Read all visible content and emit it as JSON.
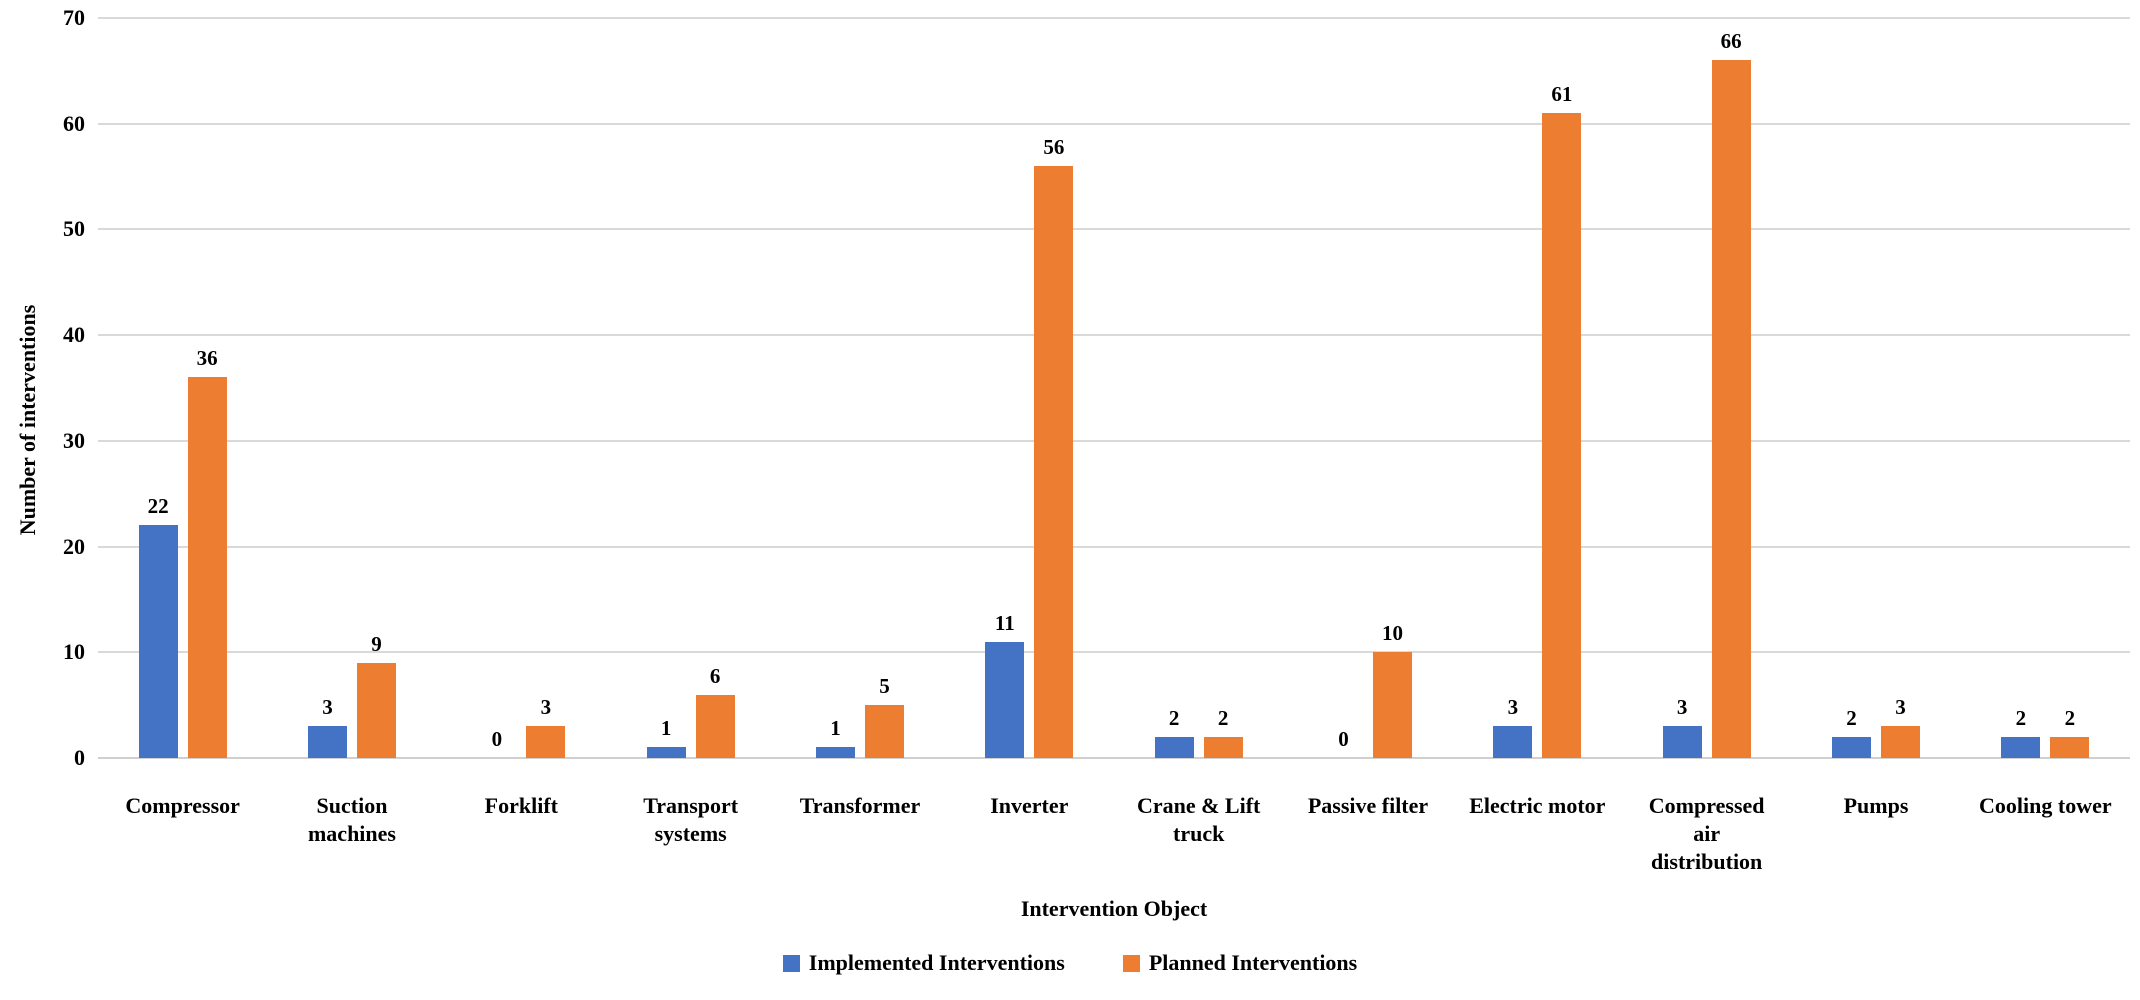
{
  "chart_data": {
    "type": "bar",
    "title": "",
    "xlabel": "Intervention Object",
    "ylabel": "Number of interventions",
    "ylim": [
      0,
      70
    ],
    "yticks": [
      0,
      10,
      20,
      30,
      40,
      50,
      60,
      70
    ],
    "grid": true,
    "legend_position": "bottom",
    "categories": [
      "Compressor",
      "Suction machines",
      "Forklift",
      "Transport systems",
      "Transformer",
      "Inverter",
      "Crane & Lift truck",
      "Passive filter",
      "Electric motor",
      "Compressed air distribution",
      "Pumps",
      "Cooling tower"
    ],
    "category_label_lines": [
      [
        "Compressor"
      ],
      [
        "Suction",
        "machines"
      ],
      [
        "Forklift"
      ],
      [
        "Transport",
        "systems"
      ],
      [
        "Transformer"
      ],
      [
        "Inverter"
      ],
      [
        "Crane & Lift",
        "truck"
      ],
      [
        "Passive filter"
      ],
      [
        "Electric motor"
      ],
      [
        "Compressed",
        "air",
        "distribution"
      ],
      [
        "Pumps"
      ],
      [
        "Cooling tower"
      ]
    ],
    "series": [
      {
        "name": "Implemented Interventions",
        "color": "#4472C4",
        "values": [
          22,
          3,
          0,
          1,
          1,
          11,
          2,
          0,
          3,
          3,
          2,
          2
        ]
      },
      {
        "name": "Planned Interventions",
        "color": "#ED7D31",
        "values": [
          36,
          9,
          3,
          6,
          5,
          56,
          2,
          10,
          61,
          66,
          3,
          2
        ]
      }
    ],
    "colors": {
      "gridline": "#D9D9D9",
      "axis_line": "#D0D0D0",
      "text": "#000000",
      "background": "#FFFFFF"
    }
  }
}
